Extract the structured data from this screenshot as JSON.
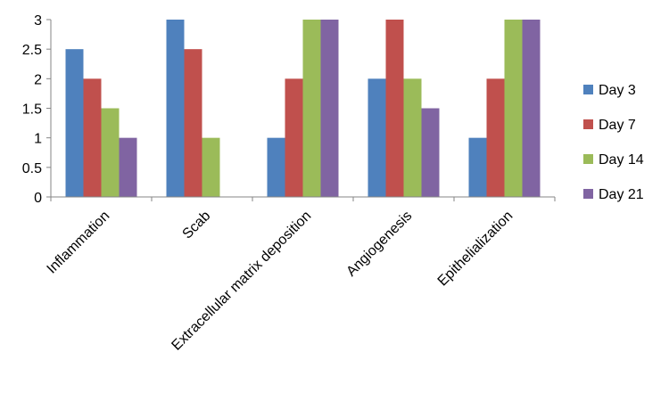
{
  "chart_data": {
    "type": "bar",
    "categories": [
      "Inflammation",
      "Scab",
      "Extracellular matrix deposition",
      "Angiogenesis",
      "Epithelialization"
    ],
    "series": [
      {
        "name": "Day 3",
        "color": "#4F81BD",
        "values": [
          2.5,
          3,
          1,
          2,
          1
        ]
      },
      {
        "name": "Day 7",
        "color": "#C0504D",
        "values": [
          2,
          2.5,
          2,
          3,
          2
        ]
      },
      {
        "name": "Day 14",
        "color": "#9BBB59",
        "values": [
          1.5,
          1,
          3,
          2,
          3
        ]
      },
      {
        "name": "Day 21",
        "color": "#8064A2",
        "values": [
          1,
          0,
          3,
          1.5,
          3
        ]
      }
    ],
    "yticks": [
      "0",
      "0.5",
      "1",
      "1.5",
      "2",
      "2.5",
      "3"
    ],
    "ylim": [
      0,
      3
    ],
    "grid": false,
    "legend": "right"
  }
}
